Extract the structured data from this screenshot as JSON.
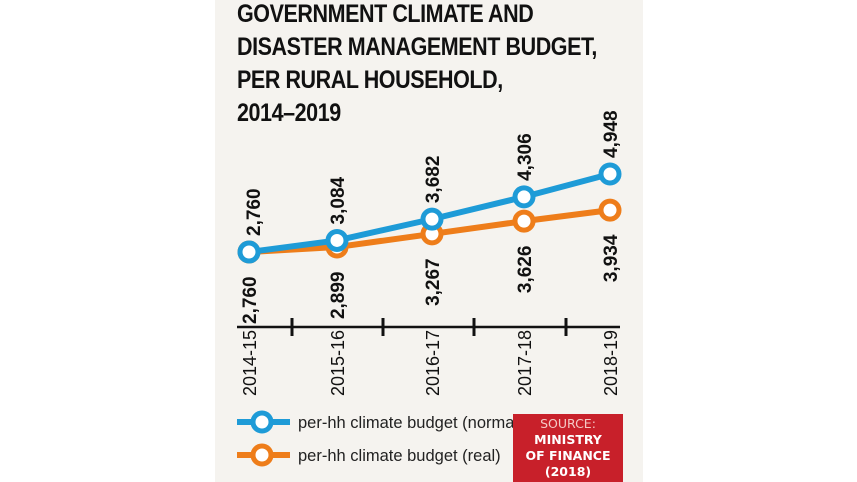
{
  "chart_data": {
    "type": "line",
    "title": [
      "GOVERNMENT CLIMATE AND",
      "DISASTER MANAGEMENT BUDGET,",
      "PER RURAL HOUSEHOLD,",
      "2014–2019"
    ],
    "categories": [
      "2014-15",
      "2015-16",
      "2016-17",
      "2017-18",
      "2018-19"
    ],
    "series": [
      {
        "name": "per-hh climate budget (normal)",
        "color": "#1e9bd7",
        "values": [
          2760,
          3084,
          3682,
          4306,
          4948
        ],
        "labels": [
          "2,760",
          "3,084",
          "3,682",
          "4,306",
          "4,948"
        ]
      },
      {
        "name": "per-hh climate budget (real)",
        "color": "#ee7d1a",
        "values": [
          2760,
          2899,
          3267,
          3626,
          3934
        ],
        "labels": [
          "2,760",
          "2,899",
          "3,267",
          "3,626",
          "3,934"
        ]
      }
    ],
    "legend": "bottom-left",
    "grid": false
  },
  "source": {
    "label": "SOURCE:",
    "line1": "MINISTRY",
    "line2": "OF FINANCE",
    "line3": "(2018)",
    "color": "#c8202a"
  }
}
